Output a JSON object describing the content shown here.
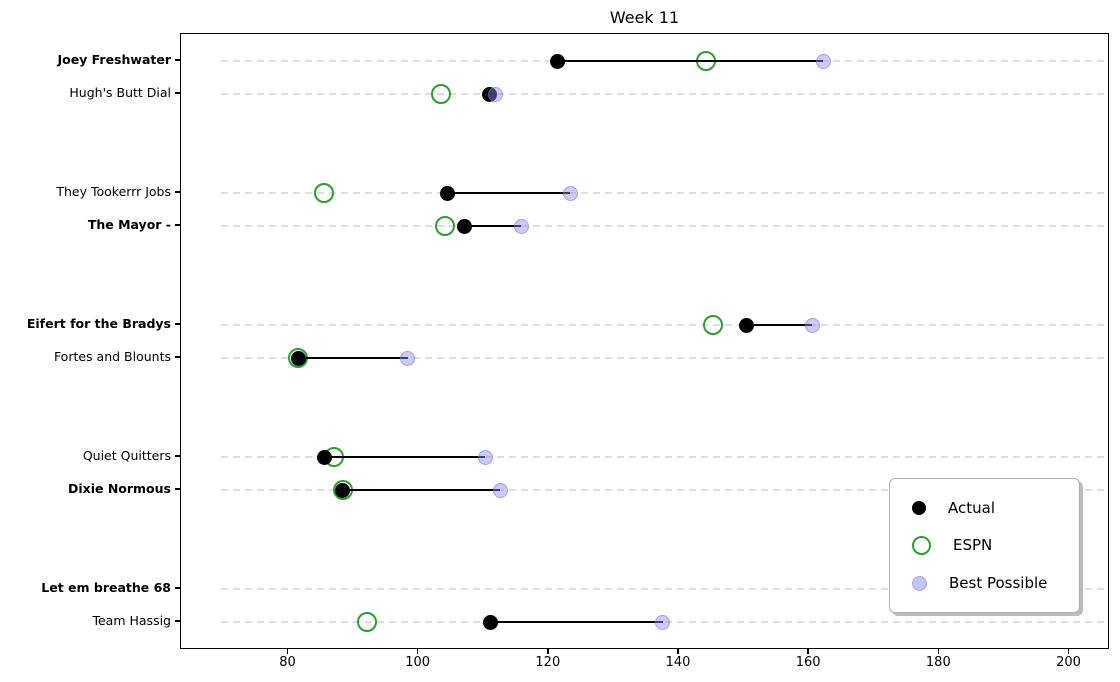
{
  "title": "Week 11",
  "legend": {
    "actual_label": "Actual",
    "espn_label": "ESPN",
    "best_label": "Best Possible",
    "position": "lower right"
  },
  "colors": {
    "actual": "#000000",
    "espn": "#2ca02c",
    "best_possible": "#aaaaee",
    "gridline": "#dedede"
  },
  "chart_data": {
    "type": "scatter",
    "title": "Week 11",
    "xlabel": "",
    "ylabel": "",
    "xlim": [
      63.5,
      206.3
    ],
    "x_ticks": [
      80,
      100,
      120,
      140,
      160,
      180,
      200
    ],
    "grid": "horizontal-dashed",
    "legend_position": "lower right",
    "series_names": [
      "Actual",
      "ESPN",
      "Best Possible"
    ],
    "note_bold_names_indicate": "matchup winners shown in bold",
    "teams": [
      {
        "name": "Joey Freshwater",
        "bold": true,
        "actual": 121.3,
        "espn": 144.2,
        "best_possible": 162.2
      },
      {
        "name": "Hugh's Butt Dial",
        "bold": false,
        "actual": 110.9,
        "espn": 103.4,
        "best_possible": 111.8
      },
      {
        "name": "They Tookerrr Jobs",
        "bold": false,
        "actual": 104.4,
        "espn": 85.5,
        "best_possible": 123.3
      },
      {
        "name": "The Mayor -",
        "bold": true,
        "actual": 107.0,
        "espn": 104.1,
        "best_possible": 115.8
      },
      {
        "name": "Eifert for the Bradys",
        "bold": true,
        "actual": 150.3,
        "espn": 145.2,
        "best_possible": 160.5
      },
      {
        "name": "Fortes and Blounts",
        "bold": false,
        "actual": 81.5,
        "espn": 81.5,
        "best_possible": 98.3
      },
      {
        "name": "Quiet Quitters",
        "bold": false,
        "actual": 85.6,
        "espn": 87.0,
        "best_possible": 110.2
      },
      {
        "name": "Dixie Normous",
        "bold": true,
        "actual": 88.3,
        "espn": 88.3,
        "best_possible": 112.5
      },
      {
        "name": "Let em breathe 68",
        "bold": true,
        "actual": null,
        "espn": null,
        "best_possible": null
      },
      {
        "name": "Team Hassig",
        "bold": false,
        "actual": 111.0,
        "espn": 92.0,
        "best_possible": 137.5
      }
    ]
  }
}
